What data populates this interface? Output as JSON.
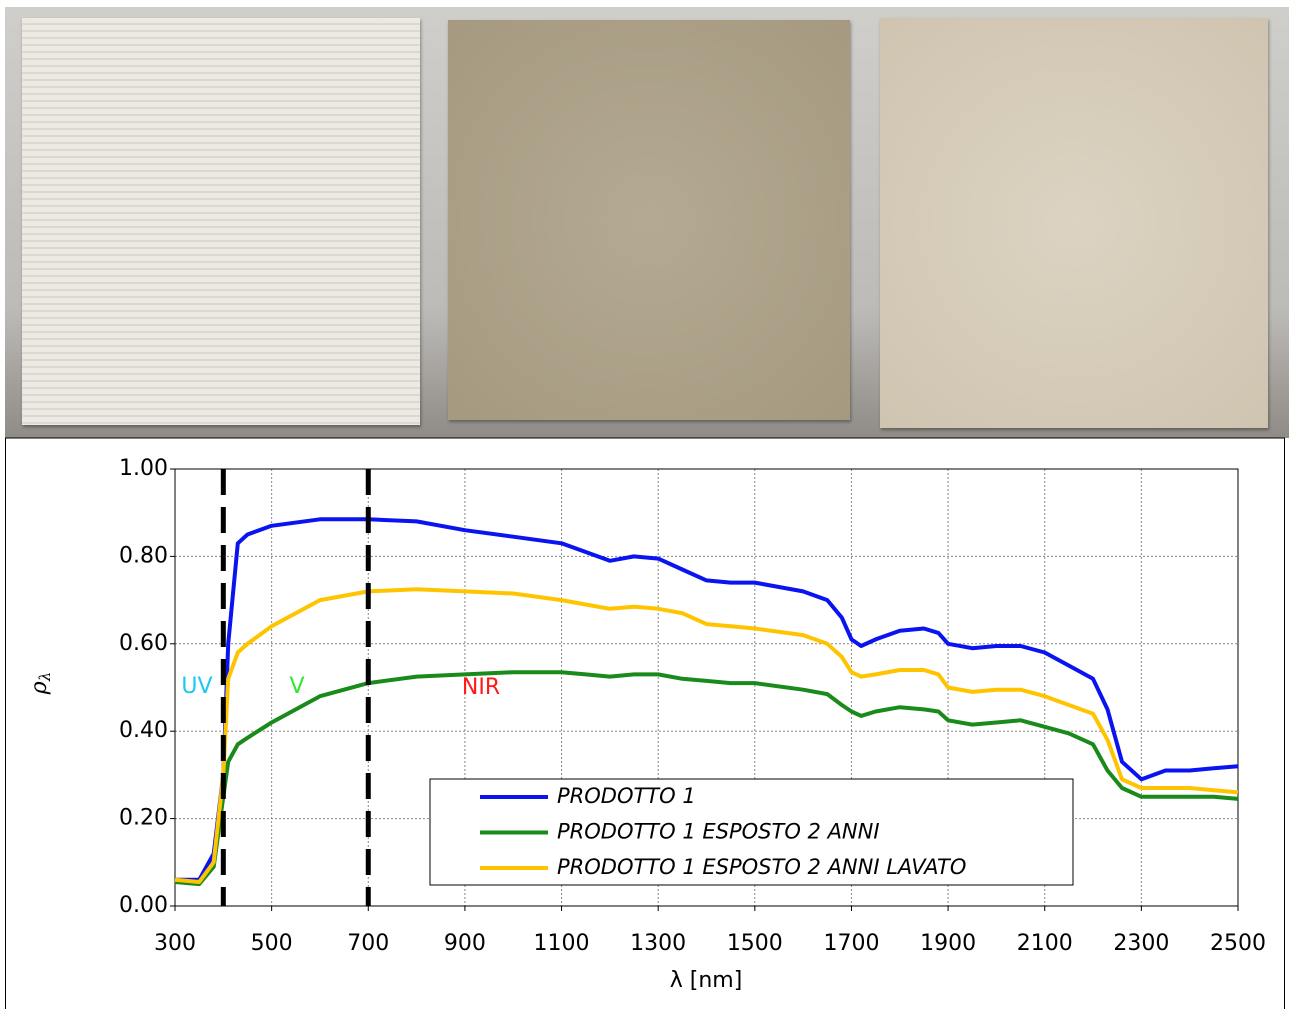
{
  "chart_data": {
    "type": "line",
    "y_label": {
      "symbol": "ρ",
      "subscript": "λ"
    },
    "x_label": "λ  [nm]",
    "x": [
      300,
      350,
      380,
      400,
      410,
      430,
      450,
      500,
      600,
      700,
      800,
      900,
      1000,
      1100,
      1150,
      1200,
      1250,
      1300,
      1350,
      1400,
      1450,
      1500,
      1600,
      1650,
      1680,
      1700,
      1720,
      1750,
      1800,
      1850,
      1880,
      1900,
      1950,
      2000,
      2050,
      2100,
      2150,
      2200,
      2230,
      2260,
      2300,
      2350,
      2400,
      2450,
      2500
    ],
    "series": [
      {
        "name": "PRODOTTO 1",
        "color": "#0a14f0",
        "values": [
          0.06,
          0.06,
          0.12,
          0.3,
          0.6,
          0.83,
          0.85,
          0.87,
          0.885,
          0.885,
          0.88,
          0.86,
          0.845,
          0.83,
          0.81,
          0.79,
          0.8,
          0.795,
          0.77,
          0.745,
          0.74,
          0.74,
          0.72,
          0.7,
          0.66,
          0.61,
          0.595,
          0.61,
          0.63,
          0.635,
          0.625,
          0.6,
          0.59,
          0.595,
          0.595,
          0.58,
          0.55,
          0.52,
          0.45,
          0.33,
          0.29,
          0.31,
          0.31,
          0.315,
          0.32
        ]
      },
      {
        "name": "PRODOTTO 1 ESPOSTO 2 ANNI",
        "color": "#1a8a1a",
        "values": [
          0.055,
          0.05,
          0.09,
          0.25,
          0.33,
          0.37,
          0.385,
          0.42,
          0.48,
          0.51,
          0.525,
          0.53,
          0.535,
          0.535,
          0.53,
          0.525,
          0.53,
          0.53,
          0.52,
          0.515,
          0.51,
          0.51,
          0.495,
          0.485,
          0.46,
          0.445,
          0.435,
          0.445,
          0.455,
          0.45,
          0.445,
          0.425,
          0.415,
          0.42,
          0.425,
          0.41,
          0.395,
          0.37,
          0.31,
          0.27,
          0.25,
          0.25,
          0.25,
          0.25,
          0.245
        ]
      },
      {
        "name": "PRODOTTO 1 ESPOSTO 2 ANNI LAVATO",
        "color": "#ffc400",
        "values": [
          0.06,
          0.055,
          0.1,
          0.3,
          0.52,
          0.58,
          0.6,
          0.64,
          0.7,
          0.72,
          0.725,
          0.72,
          0.715,
          0.7,
          0.69,
          0.68,
          0.685,
          0.68,
          0.67,
          0.645,
          0.64,
          0.635,
          0.62,
          0.6,
          0.57,
          0.535,
          0.525,
          0.53,
          0.54,
          0.54,
          0.53,
          0.5,
          0.49,
          0.495,
          0.495,
          0.48,
          0.46,
          0.44,
          0.38,
          0.29,
          0.27,
          0.27,
          0.27,
          0.265,
          0.26
        ]
      }
    ],
    "xlim": [
      300,
      2500
    ],
    "xticks": [
      300,
      500,
      700,
      900,
      1100,
      1300,
      1500,
      1700,
      1900,
      2100,
      2300,
      2500
    ],
    "ylim": [
      0,
      1
    ],
    "yticks": [
      {
        "value": 0,
        "label": "0.00"
      },
      {
        "value": 0.2,
        "label": "0.20"
      },
      {
        "value": 0.4,
        "label": "0.40"
      },
      {
        "value": 0.6,
        "label": "0.60"
      },
      {
        "value": 0.8,
        "label": "0.80"
      },
      {
        "value": 1,
        "label": "1.00"
      }
    ],
    "grid": true,
    "vlines": [
      400,
      700
    ],
    "annotations": [
      {
        "text": "UV",
        "color": "#1ec8f0"
      },
      {
        "text": "V",
        "color": "#33e633"
      },
      {
        "text": "NIR",
        "color": "#ff1a1a"
      }
    ]
  }
}
